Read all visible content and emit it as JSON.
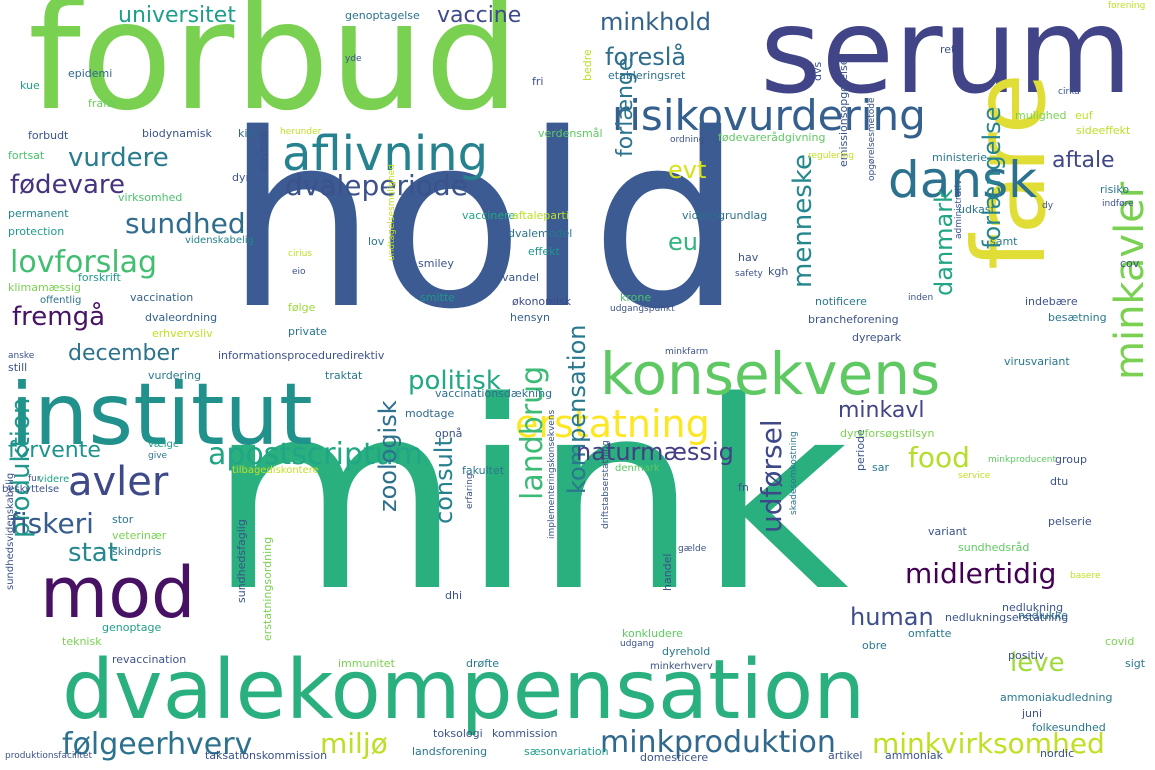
{
  "words": [
    {
      "text": "mink",
      "color": "#2aaf7f"
    },
    {
      "text": "hold",
      "color": "#3b5b92"
    },
    {
      "text": "forbud",
      "color": "#7ad151"
    },
    {
      "text": "serum",
      "color": "#414487"
    },
    {
      "text": "fare",
      "color": "#e1dd37"
    },
    {
      "text": "institut",
      "color": "#21918c"
    },
    {
      "text": "dvalekompensation",
      "color": "#2aaf7f"
    },
    {
      "text": "konsekvens",
      "color": "#5ec962"
    },
    {
      "text": "mod",
      "color": "#471164"
    },
    {
      "text": "risikovurdering",
      "color": "#355f8d"
    },
    {
      "text": "aflivning",
      "color": "#26828e"
    },
    {
      "text": "dansk",
      "color": "#2c728e"
    },
    {
      "text": "erstatning",
      "color": "#fde725"
    },
    {
      "text": "minkavler",
      "color": "#7ad151"
    },
    {
      "text": "avler",
      "color": "#3e4989"
    },
    {
      "text": "dvaleperiode",
      "color": "#3b528b"
    },
    {
      "text": "følgeerhverv",
      "color": "#2c728e"
    },
    {
      "text": "minkproduktion",
      "color": "#31688e"
    },
    {
      "text": "minkvirksomhed",
      "color": "#c2df23"
    },
    {
      "text": "apostscriptum",
      "color": "#21a685"
    },
    {
      "text": "politisk",
      "color": "#22a884"
    },
    {
      "text": "landbrug",
      "color": "#3bbb75"
    },
    {
      "text": "kompensation",
      "color": "#2a788e"
    },
    {
      "text": "lovforslag",
      "color": "#42be71"
    },
    {
      "text": "fremgå",
      "color": "#471365"
    },
    {
      "text": "fødevare",
      "color": "#46327e"
    },
    {
      "text": "vurdere",
      "color": "#287c8e"
    },
    {
      "text": "sundhed",
      "color": "#2f6c8e"
    },
    {
      "text": "udførsel",
      "color": "#3f4889"
    },
    {
      "text": "midlertidig",
      "color": "#440154"
    },
    {
      "text": "naturmæssig",
      "color": "#433e85"
    },
    {
      "text": "produktion",
      "color": "#1f988b"
    },
    {
      "text": "zoologisk",
      "color": "#2d708e"
    },
    {
      "text": "consult",
      "color": "#26818e"
    },
    {
      "text": "fiskeri",
      "color": "#365d8d"
    },
    {
      "text": "stat",
      "color": "#23898e"
    },
    {
      "text": "human",
      "color": "#3d4e8a"
    },
    {
      "text": "leve",
      "color": "#a0da39"
    },
    {
      "text": "food",
      "color": "#b5de2b"
    },
    {
      "text": "miljø",
      "color": "#bddf26"
    },
    {
      "text": "forlænge",
      "color": "#2c738e"
    },
    {
      "text": "forlængelse",
      "color": "#25848e"
    },
    {
      "text": "menneske",
      "color": "#24878e"
    },
    {
      "text": "danmark",
      "color": "#21a585"
    },
    {
      "text": "evt",
      "color": "#d8e219"
    },
    {
      "text": "eu",
      "color": "#30b57c"
    },
    {
      "text": "aftale",
      "color": "#3f4788"
    },
    {
      "text": "minkhold",
      "color": "#33638d"
    },
    {
      "text": "universitet",
      "color": "#1f9e89"
    },
    {
      "text": "vaccine",
      "color": "#3e4a89"
    },
    {
      "text": "foreslå",
      "color": "#2e6e8e"
    },
    {
      "text": "december",
      "color": "#2c738e"
    },
    {
      "text": "forvente",
      "color": "#1f948c"
    },
    {
      "text": "minkavl",
      "color": "#414487"
    },
    {
      "text": "genoptagelse",
      "color": "#2d718e"
    },
    {
      "text": "etableringsret",
      "color": "#2e6f8e"
    },
    {
      "text": "biodynamisk",
      "color": "#3b528b"
    },
    {
      "text": "kilo",
      "color": "#31688e"
    },
    {
      "text": "epidemi",
      "color": "#31678e"
    },
    {
      "text": "frafør",
      "color": "#6ccd5a"
    },
    {
      "text": "forbudt",
      "color": "#3a548c"
    },
    {
      "text": "kue",
      "color": "#1fa088"
    },
    {
      "text": "fri",
      "color": "#3b528b"
    },
    {
      "text": "verdensmål",
      "color": "#5ec962"
    },
    {
      "text": "fortsat",
      "color": "#4ac16d"
    },
    {
      "text": "dyr",
      "color": "#3b528b"
    },
    {
      "text": "custom",
      "color": "#3b528b"
    },
    {
      "text": "virksomhed",
      "color": "#4ac16d"
    },
    {
      "text": "permanent",
      "color": "#24878e"
    },
    {
      "text": "protection",
      "color": "#1f9e89"
    },
    {
      "text": "videnskabelig",
      "color": "#26828e"
    },
    {
      "text": "forskrift",
      "color": "#1f9a8a"
    },
    {
      "text": "klimamæssig",
      "color": "#7ad151"
    },
    {
      "text": "offentlig",
      "color": "#2c728e"
    },
    {
      "text": "vaccination",
      "color": "#34618d"
    },
    {
      "text": "dvaleordning",
      "color": "#34618d"
    },
    {
      "text": "erhvervsliv",
      "color": "#c2df23"
    },
    {
      "text": "private",
      "color": "#2a768e"
    },
    {
      "text": "følge",
      "color": "#9bd93c"
    },
    {
      "text": "smitte",
      "color": "#1f968b"
    },
    {
      "text": "vandel",
      "color": "#38588c"
    },
    {
      "text": "smiley",
      "color": "#3b528b"
    },
    {
      "text": "effekt",
      "color": "#1f968b"
    },
    {
      "text": "dvalemodel",
      "color": "#2a778e"
    },
    {
      "text": "vaccinere",
      "color": "#22a884"
    },
    {
      "text": "aftaleparti",
      "color": "#bddf26"
    },
    {
      "text": "lov",
      "color": "#2a788e"
    },
    {
      "text": "vidensgrundlag",
      "color": "#2d708e"
    },
    {
      "text": "økonomisk",
      "color": "#3e4a89"
    },
    {
      "text": "hensyn",
      "color": "#34618d"
    },
    {
      "text": "krone",
      "color": "#4ac16d"
    },
    {
      "text": "udgangspunkt",
      "color": "#3b528b"
    },
    {
      "text": "informationsproceduredirektiv",
      "color": "#3b528b"
    },
    {
      "text": "traktat",
      "color": "#2a788e"
    },
    {
      "text": "vaccinationsdækning",
      "color": "#2d708e"
    },
    {
      "text": "modtage",
      "color": "#31688e"
    },
    {
      "text": "opnå",
      "color": "#3b528b"
    },
    {
      "text": "fakultet",
      "color": "#2a788e"
    },
    {
      "text": "vurdering",
      "color": "#2a788e"
    },
    {
      "text": "still",
      "color": "#3b528b"
    },
    {
      "text": "vælge",
      "color": "#1f9e89"
    },
    {
      "text": "give",
      "color": "#2a788e"
    },
    {
      "text": "fur",
      "color": "#3b528b"
    },
    {
      "text": "beskyttelse",
      "color": "#3b528b"
    },
    {
      "text": "videre",
      "color": "#21a585"
    },
    {
      "text": "stor",
      "color": "#2a788e"
    },
    {
      "text": "veterinær",
      "color": "#7ad151"
    },
    {
      "text": "skindpris",
      "color": "#2a788e"
    },
    {
      "text": "revaccination",
      "color": "#3b528b"
    },
    {
      "text": "genoptage",
      "color": "#1f9e89"
    },
    {
      "text": "teknisk",
      "color": "#7ad151"
    },
    {
      "text": "immunitet",
      "color": "#7ad151"
    },
    {
      "text": "drøfte",
      "color": "#2a788e"
    },
    {
      "text": "toksologi",
      "color": "#3b528b"
    },
    {
      "text": "kommission",
      "color": "#3b528b"
    },
    {
      "text": "landsforening",
      "color": "#2a788e"
    },
    {
      "text": "sæsonvariation",
      "color": "#1f9e89"
    },
    {
      "text": "domesticere",
      "color": "#3b528b"
    },
    {
      "text": "artikel",
      "color": "#3b528b"
    },
    {
      "text": "ammoniak",
      "color": "#3b528b"
    },
    {
      "text": "nordic",
      "color": "#3b528b"
    },
    {
      "text": "produktionsfacilitet",
      "color": "#3b528b"
    },
    {
      "text": "taksationskommission",
      "color": "#3b528b"
    },
    {
      "text": "konkludere",
      "color": "#5ec962"
    },
    {
      "text": "dyrehold",
      "color": "#2a788e"
    },
    {
      "text": "minkerhverv",
      "color": "#3b528b"
    },
    {
      "text": "obre",
      "color": "#2a788e"
    },
    {
      "text": "omfatte",
      "color": "#2a788e"
    },
    {
      "text": "nedlukning",
      "color": "#3b528b"
    },
    {
      "text": "nedlukke",
      "color": "#2a788e"
    },
    {
      "text": "nedlukningserstatning",
      "color": "#3b528b"
    },
    {
      "text": "positiv",
      "color": "#3b528b"
    },
    {
      "text": "sigt",
      "color": "#2a788e"
    },
    {
      "text": "covid",
      "color": "#7ad151"
    },
    {
      "text": "ammoniakudledning",
      "color": "#2a788e"
    },
    {
      "text": "juni",
      "color": "#3b528b"
    },
    {
      "text": "folkesundhed",
      "color": "#2a788e"
    },
    {
      "text": "variant",
      "color": "#3b528b"
    },
    {
      "text": "sundhedsråd",
      "color": "#5ec962"
    },
    {
      "text": "pelserie",
      "color": "#3b528b"
    },
    {
      "text": "sar",
      "color": "#2a788e"
    },
    {
      "text": "dtu",
      "color": "#3b528b"
    },
    {
      "text": "group",
      "color": "#3b528b"
    },
    {
      "text": "fn",
      "color": "#3b528b"
    },
    {
      "text": "periode",
      "color": "#3b528b"
    },
    {
      "text": "service",
      "color": "#c2df23"
    },
    {
      "text": "minkproducent",
      "color": "#5ec962"
    },
    {
      "text": "dyreforsøgstilsyn",
      "color": "#7ad151"
    },
    {
      "text": "virusvariant",
      "color": "#2a788e"
    },
    {
      "text": "dyrepark",
      "color": "#3b528b"
    },
    {
      "text": "brancheforening",
      "color": "#3b528b"
    },
    {
      "text": "notificere",
      "color": "#2a788e"
    },
    {
      "text": "indebære",
      "color": "#3b528b"
    },
    {
      "text": "besætning",
      "color": "#2a788e"
    },
    {
      "text": "minkfarm",
      "color": "#3b528b"
    },
    {
      "text": "inden",
      "color": "#3b528b"
    },
    {
      "text": "administrativ",
      "color": "#3b528b"
    },
    {
      "text": "kgh",
      "color": "#3b528b"
    },
    {
      "text": "hav",
      "color": "#3b528b"
    },
    {
      "text": "safety",
      "color": "#3b528b"
    },
    {
      "text": "opgørelsesmetode",
      "color": "#3b528b"
    },
    {
      "text": "emissionsopgørelse",
      "color": "#3b528b"
    },
    {
      "text": "udkast",
      "color": "#2a788e"
    },
    {
      "text": "samt",
      "color": "#2a788e"
    },
    {
      "text": "dy",
      "color": "#3b528b"
    },
    {
      "text": "risiko",
      "color": "#2a788e"
    },
    {
      "text": "indføre",
      "color": "#3b528b"
    },
    {
      "text": "cov",
      "color": "#3b528b"
    },
    {
      "text": "ministerie",
      "color": "#2a788e"
    },
    {
      "text": "regulering",
      "color": "#c2df23"
    },
    {
      "text": "fødevarerådgivning",
      "color": "#5ec962"
    },
    {
      "text": "mulighed",
      "color": "#7ad151"
    },
    {
      "text": "sideeffekt",
      "color": "#bddf26"
    },
    {
      "text": "euf",
      "color": "#c2df23"
    },
    {
      "text": "ret",
      "color": "#3b528b"
    },
    {
      "text": "cirka",
      "color": "#3b528b"
    },
    {
      "text": "dvs",
      "color": "#3b528b"
    },
    {
      "text": "bedre",
      "color": "#bddf26"
    },
    {
      "text": "yde",
      "color": "#3b528b"
    },
    {
      "text": "forening",
      "color": "#c2df23"
    },
    {
      "text": "ordning",
      "color": "#3b528b"
    },
    {
      "text": "herunder",
      "color": "#c2df23"
    },
    {
      "text": "anske",
      "color": "#3b528b"
    },
    {
      "text": "tilbagediskontere",
      "color": "#c2df23"
    },
    {
      "text": "denmark",
      "color": "#5ec962"
    },
    {
      "text": "erfaring",
      "color": "#3b528b"
    },
    {
      "text": "driftstabserstatning",
      "color": "#3b528b"
    },
    {
      "text": "implementeringskonsekvens",
      "color": "#3b528b"
    },
    {
      "text": "skadesomkostning",
      "color": "#2a788e"
    },
    {
      "text": "handel",
      "color": "#3b528b"
    },
    {
      "text": "gælde",
      "color": "#3b528b"
    },
    {
      "text": "udgang",
      "color": "#3b528b"
    },
    {
      "text": "erstatningsordning",
      "color": "#7ad151"
    },
    {
      "text": "sundhedsfaglig",
      "color": "#3b528b"
    },
    {
      "text": "sundhedsvidenskabelig",
      "color": "#3b528b"
    },
    {
      "text": "dhi",
      "color": "#3b528b"
    },
    {
      "text": "basere",
      "color": "#c2df23"
    },
    {
      "text": "cirius",
      "color": "#c2df23"
    },
    {
      "text": "eio",
      "color": "#3b528b"
    },
    {
      "text": "undtagelsesmulighed",
      "color": "#c2df23"
    }
  ]
}
